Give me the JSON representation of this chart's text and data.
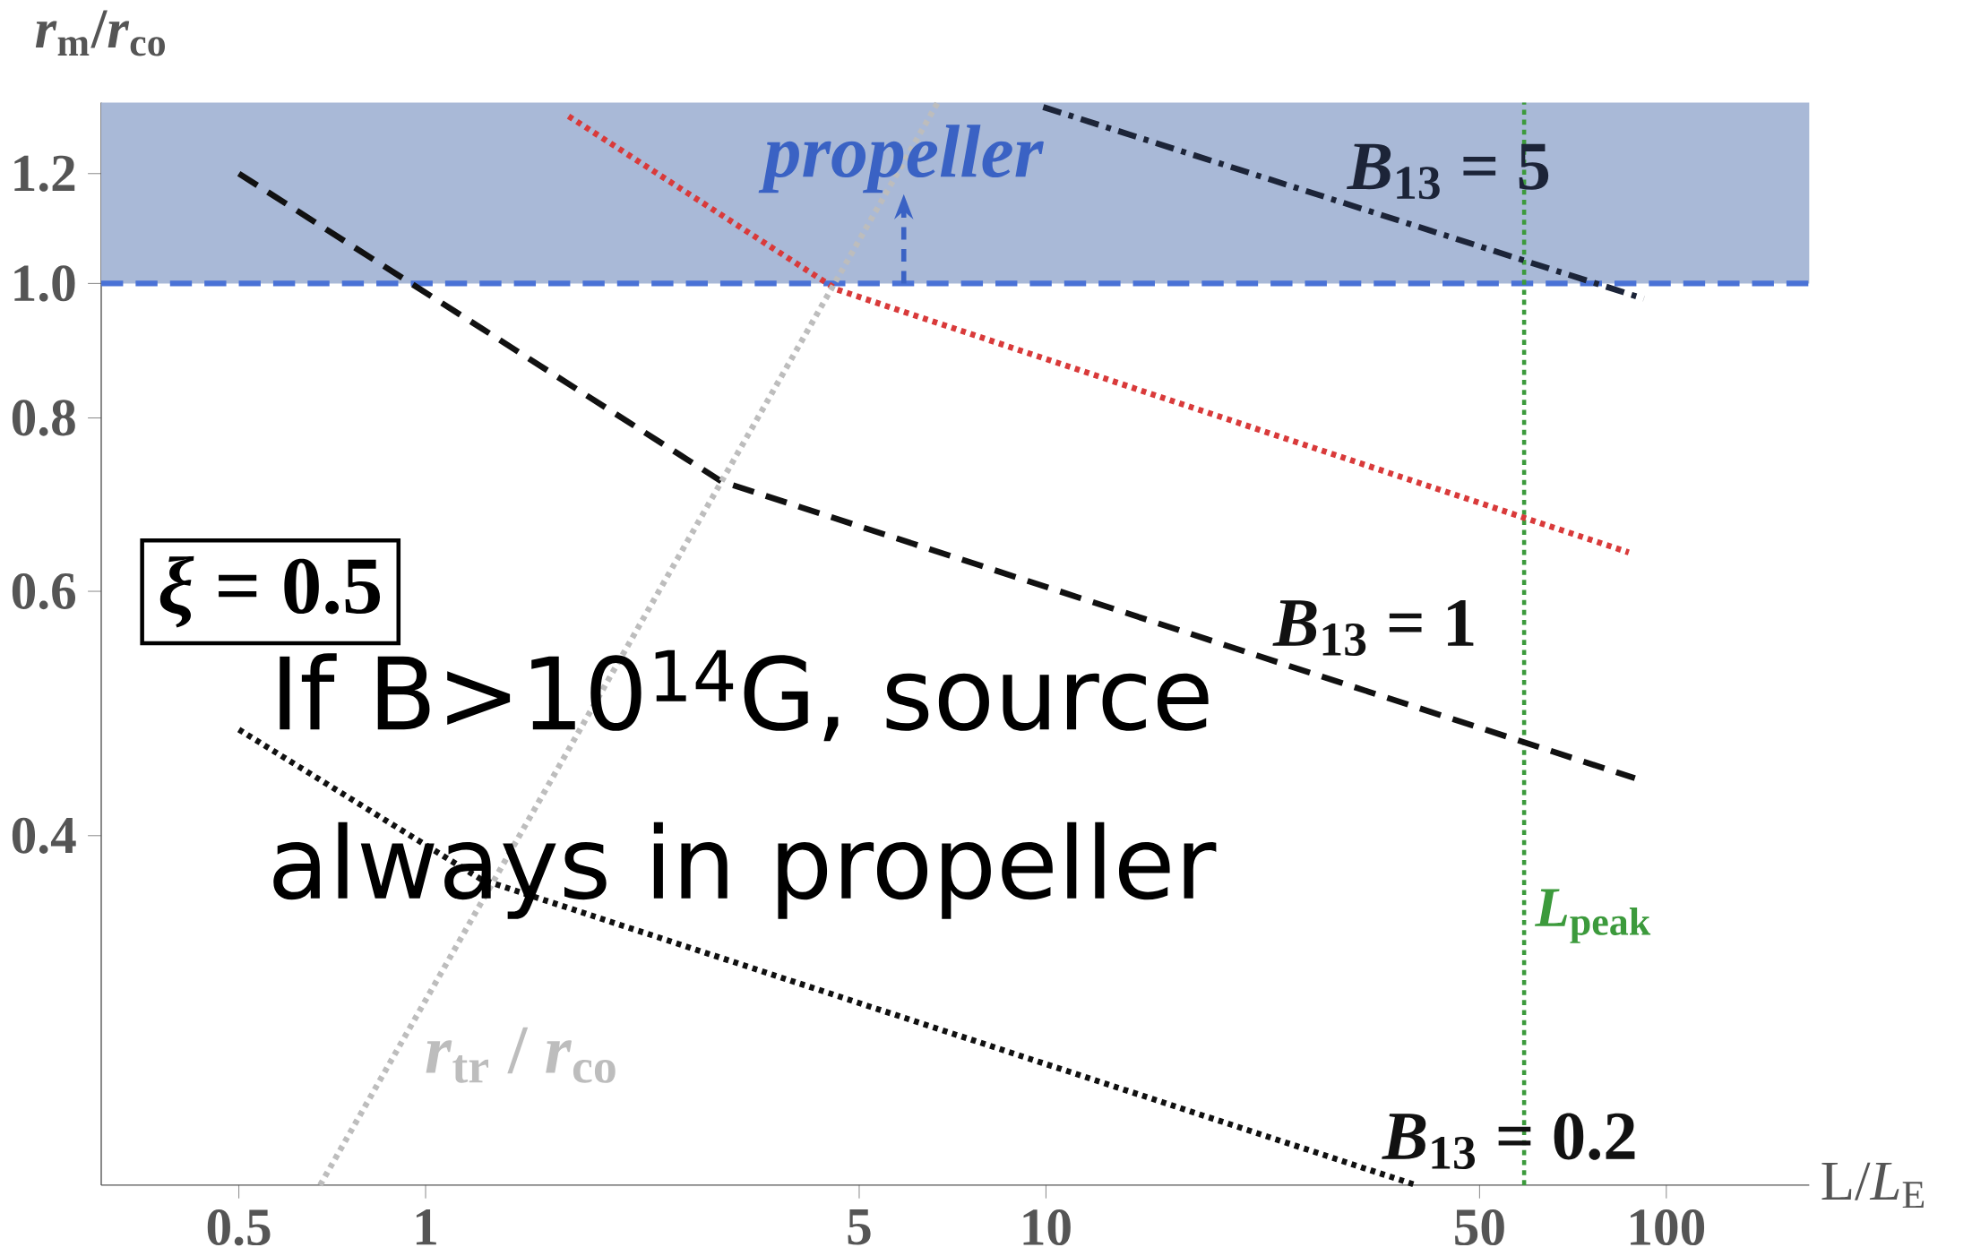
{
  "chart_data": {
    "type": "line",
    "log": "xy",
    "xlabel": "L/*L*$_{E}$",
    "ylabel": "*r*$_{m}$/*r*$_{co}$",
    "xlim": [
      0.3,
      170
    ],
    "ylim": [
      0.224,
      1.35
    ],
    "xticks": [
      0.5,
      1,
      5,
      10,
      50,
      100
    ],
    "yticks": [
      0.4,
      0.6,
      0.8,
      {
        "value": 1,
        "label": "1.0"
      },
      1.2
    ],
    "series": [
      {
        "name": "*B*$_{13}$ = 5",
        "color": "#1c2438",
        "line_style": "dashdot",
        "x": [
          9.9,
          92
        ],
        "values": [
          1.34,
          0.975
        ]
      },
      {
        "color": "#d93a3a",
        "line_style": "dotted",
        "x": [
          1.7,
          4.6,
          87
        ],
        "values": [
          1.32,
          0.99,
          0.64
        ]
      },
      {
        "name": "*B*$_{13}$ = 1",
        "color": "#111111",
        "line_style": "dashed",
        "x": [
          0.5,
          3,
          89
        ],
        "values": [
          1.2,
          0.72,
          0.44
        ]
      },
      {
        "name": "*B*$_{13}$ = 0.2",
        "color": "#111111",
        "line_style": "dotted",
        "x": [
          0.5,
          1.23,
          39.5
        ],
        "values": [
          0.477,
          0.372,
          0.224
        ]
      },
      {
        "name": "*r*$_{tr}$ / *r*$_{co}$",
        "color": "#bdbdbd",
        "line_style": "dotted",
        "x": [
          0.676,
          6.69
        ],
        "values": [
          0.224,
          1.35
        ]
      }
    ],
    "bands": [
      {
        "axis": "y",
        "from": 1,
        "to": 1.35,
        "color": "#a9b9d7"
      }
    ],
    "ref_lines": [
      {
        "axis": "y",
        "value": 1,
        "color": "#4a72d6",
        "line_style": "dashed"
      },
      {
        "axis": "x",
        "value": 59,
        "label": "*L*$_{peak}$",
        "color": "#3c9a3c",
        "line_style": "dotted"
      }
    ],
    "annotations": [
      {
        "text": "*propeller*",
        "x": 5.9,
        "y": 1.23
      },
      "*ξ* = 0.5",
      "If B>10$^{14}$G, source always in propeller"
    ]
  }
}
